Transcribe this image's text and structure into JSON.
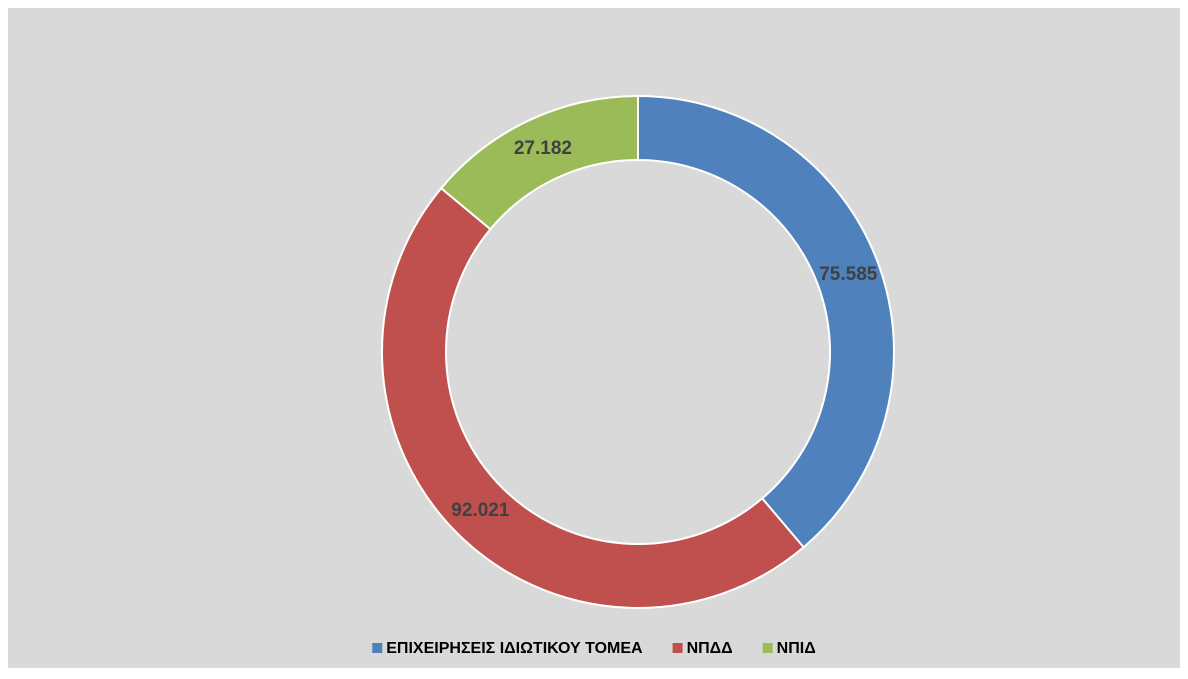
{
  "chart_data": {
    "type": "donut",
    "categories": [
      "ΕΠΙΧΕΙΡΗΣΕΙΣ ΙΔΙΩΤΙΚΟΥ ΤΟΜΕΑ",
      "ΝΠΔΔ",
      "ΝΠΙΔ"
    ],
    "values": [
      75585,
      92021,
      27182
    ],
    "value_labels": [
      "75.585",
      "92.021",
      "27.182"
    ],
    "colors": [
      "#4f81bd",
      "#c0504d",
      "#9bbb59"
    ],
    "legend": "bottom"
  }
}
